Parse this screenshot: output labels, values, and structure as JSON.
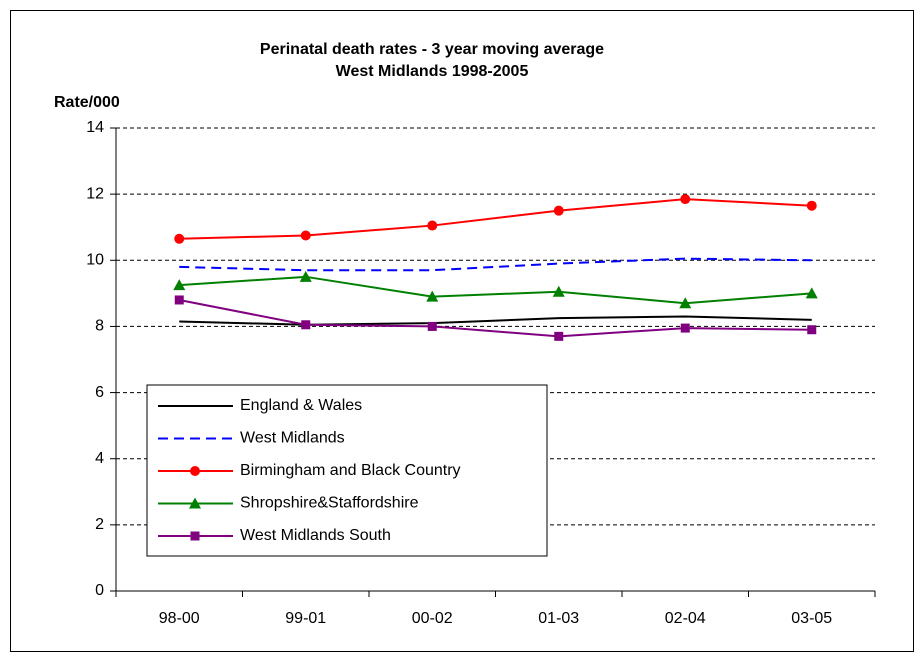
{
  "chart_data": {
    "type": "line",
    "title": "Perinatal death rates - 3 year moving average",
    "subtitle": "West Midlands 1998-2005",
    "y_label": "Rate/000",
    "categories": [
      "98-00",
      "99-01",
      "00-02",
      "01-03",
      "02-04",
      "03-05"
    ],
    "series": [
      {
        "name": "England & Wales",
        "color": "#000000",
        "dash": false,
        "marker": null,
        "values": [
          8.15,
          8.05,
          8.1,
          8.25,
          8.3,
          8.2
        ]
      },
      {
        "name": "West Midlands",
        "color": "#0000ff",
        "dash": true,
        "marker": null,
        "values": [
          9.8,
          9.7,
          9.7,
          9.9,
          10.05,
          10.0
        ]
      },
      {
        "name": "Birmingham and Black Country",
        "color": "#ff0000",
        "dash": false,
        "marker": "circle",
        "values": [
          10.65,
          10.75,
          11.05,
          11.5,
          11.85,
          11.65
        ]
      },
      {
        "name": "Shropshire&Staffordshire",
        "color": "#008000",
        "dash": false,
        "marker": "triangle",
        "values": [
          9.25,
          9.5,
          8.9,
          9.05,
          8.7,
          9.0
        ]
      },
      {
        "name": "West Midlands South",
        "color": "#800080",
        "dash": false,
        "marker": "square",
        "values": [
          8.8,
          8.05,
          8.0,
          7.7,
          7.95,
          7.9
        ]
      }
    ],
    "ylim": [
      0,
      14
    ],
    "yticks": [
      0,
      2,
      4,
      6,
      8,
      10,
      12,
      14
    ],
    "grid": true,
    "legend": "lower left"
  }
}
